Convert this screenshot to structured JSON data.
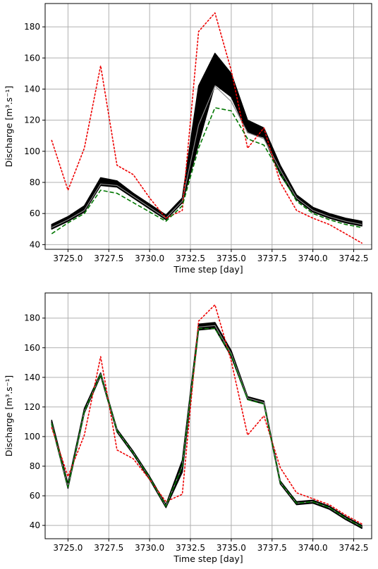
{
  "colors": {
    "ensemble": "#000000",
    "observed": "#ee0000",
    "reference": "#007700",
    "grid": "#b0b0b0",
    "axes": "#000000"
  },
  "chart_data": [
    {
      "type": "line",
      "title": "",
      "xlabel": "Time step [day]",
      "ylabel": "Discharge [m³.s⁻¹]",
      "xlim": [
        3723.6,
        3743.6
      ],
      "ylim": [
        37,
        195
      ],
      "grid": true,
      "xticks": [
        3725.0,
        3727.5,
        3730.0,
        3732.5,
        3735.0,
        3737.5,
        3740.0,
        3742.5
      ],
      "xtick_labels": [
        "3725.0",
        "3727.5",
        "3730.0",
        "3732.5",
        "3735.0",
        "3737.5",
        "3740.0",
        "3742.5"
      ],
      "yticks": [
        40,
        60,
        80,
        100,
        120,
        140,
        160,
        180
      ],
      "ytick_labels": [
        "40",
        "60",
        "80",
        "100",
        "120",
        "140",
        "160",
        "180"
      ],
      "x": [
        3724,
        3725,
        3726,
        3727,
        3728,
        3729,
        3730,
        3731,
        3732,
        3733,
        3734,
        3735,
        3736,
        3737,
        3738,
        3739,
        3740,
        3741,
        3742,
        3743
      ],
      "series": [
        {
          "role": "ensemble",
          "style": "solid-black-band",
          "lower": [
            50,
            55,
            61,
            78,
            77,
            70,
            63,
            56,
            67,
            105,
            143,
            135,
            112,
            109,
            85,
            69,
            61,
            57,
            54,
            52
          ],
          "upper": [
            53,
            58,
            65,
            83,
            81,
            73,
            66,
            59,
            70,
            142,
            163,
            150,
            120,
            115,
            91,
            72,
            64,
            60,
            57,
            55
          ],
          "grey": [
            51,
            56,
            62,
            79,
            78,
            71,
            64,
            57,
            68,
            117,
            142,
            132,
            112,
            108,
            88,
            70,
            62,
            58,
            55,
            53
          ]
        },
        {
          "role": "observed",
          "style": "red-dotted",
          "values": [
            107,
            75,
            102,
            155,
            91,
            85,
            70,
            57,
            62,
            177,
            189,
            152,
            102,
            115,
            80,
            62,
            57,
            53,
            47,
            41
          ]
        },
        {
          "role": "reference",
          "style": "green-dashed",
          "values": [
            47,
            54,
            60,
            75,
            73,
            67,
            61,
            55,
            65,
            102,
            128,
            126,
            108,
            104,
            86,
            68,
            60,
            56,
            53,
            51
          ]
        }
      ]
    },
    {
      "type": "line",
      "title": "",
      "xlabel": "Time step [day]",
      "ylabel": "Discharge [m³.s⁻¹]",
      "xlim": [
        3723.6,
        3743.6
      ],
      "ylim": [
        31,
        197
      ],
      "grid": true,
      "xticks": [
        3725.0,
        3727.5,
        3730.0,
        3732.5,
        3735.0,
        3737.5,
        3740.0,
        3742.5
      ],
      "xtick_labels": [
        "3725.0",
        "3727.5",
        "3730.0",
        "3732.5",
        "3735.0",
        "3737.5",
        "3740.0",
        "3742.5"
      ],
      "yticks": [
        40,
        60,
        80,
        100,
        120,
        140,
        160,
        180
      ],
      "ytick_labels": [
        "40",
        "60",
        "80",
        "100",
        "120",
        "140",
        "160",
        "180"
      ],
      "x": [
        3724,
        3725,
        3726,
        3727,
        3728,
        3729,
        3730,
        3731,
        3732,
        3733,
        3734,
        3735,
        3736,
        3737,
        3738,
        3739,
        3740,
        3741,
        3742,
        3743
      ],
      "series": [
        {
          "role": "ensemble",
          "style": "solid-black-band",
          "lower": [
            108,
            65,
            116,
            141,
            103,
            88,
            71,
            52,
            76,
            172,
            173,
            154,
            125,
            122,
            68,
            54,
            55,
            51,
            44,
            38
          ],
          "upper": [
            111,
            68,
            119,
            143,
            105,
            90,
            73,
            54,
            84,
            176,
            177,
            158,
            127,
            124,
            70,
            56,
            57,
            53,
            46,
            40
          ],
          "grey": [
            109,
            66,
            117,
            142,
            104,
            89,
            72,
            53,
            80,
            174,
            175,
            156,
            126,
            123,
            69,
            55,
            56,
            52,
            45,
            39
          ]
        },
        {
          "role": "observed",
          "style": "red-dotted",
          "values": [
            106,
            73,
            101,
            154,
            91,
            85,
            71,
            56,
            61,
            178,
            189,
            151,
            101,
            114,
            79,
            62,
            58,
            54,
            47,
            41
          ]
        },
        {
          "role": "reference",
          "style": "green-dashed",
          "values": [
            109,
            66,
            117,
            142,
            104,
            89,
            72,
            53,
            80,
            173,
            173,
            155,
            125,
            122,
            69,
            55,
            56,
            52,
            45,
            39
          ]
        }
      ]
    }
  ]
}
